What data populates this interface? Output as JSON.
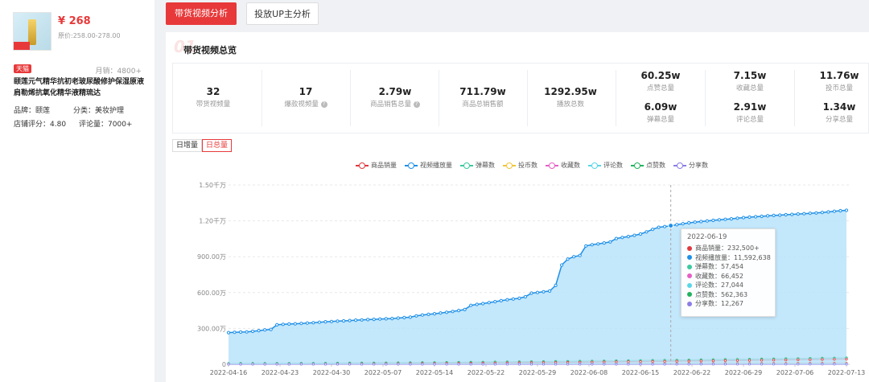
{
  "product": {
    "price": "¥ 268",
    "orig_price": "原价:258.00-278.00",
    "shop_badge": "天猫",
    "monthly_sales": "月销：4800+",
    "title": "颐莲元气精华抗初老玻尿酸修护保湿原液肩勒烯抗氧化精华液精琉达",
    "brand_label": "品牌：",
    "brand": "颐莲",
    "category_label": "分类：",
    "category": "美妆护理",
    "shop_score_label": "店铺评分：",
    "shop_score": "4.80",
    "review_label": "评论量：",
    "reviews": "7000+"
  },
  "tabs": [
    {
      "label": "带货视频分析"
    },
    {
      "label": "投放UP主分析"
    }
  ],
  "watermark": "01",
  "section_title": "带货视频总览",
  "stats": [
    {
      "value": "32",
      "label": "带货视频量"
    },
    {
      "value": "17",
      "label": "爆款视频量",
      "help": "?"
    },
    {
      "value": "2.79w",
      "label": "商品销售总量",
      "help": "?"
    },
    {
      "value": "711.79w",
      "label": "商品总销售额"
    },
    {
      "value": "1292.95w",
      "label": "播放总数"
    },
    {
      "value": "60.25w",
      "label": "点赞总量"
    },
    {
      "value": "6.09w",
      "label": "弹幕总量"
    },
    {
      "value": "7.15w",
      "label": "收藏总量"
    },
    {
      "value": "2.91w",
      "label": "评论总量"
    },
    {
      "value": "11.76w",
      "label": "投币总量"
    },
    {
      "value": "1.34w",
      "label": "分享总量"
    }
  ],
  "toggles": {
    "daily": "日增量",
    "total": "日总量"
  },
  "colors": {
    "sales": "#e0393e",
    "plays": "#1e90e8",
    "danmaku": "#3cc9a0",
    "coins": "#f0c53a",
    "favs": "#e65fc6",
    "comments": "#5ad6e8",
    "likes": "#22b35e",
    "shares": "#8b7ee6",
    "area": "#b9e3fa"
  },
  "chart_data": {
    "type": "line",
    "legend": [
      "商品销量",
      "视频播放量",
      "弹幕数",
      "投币数",
      "收藏数",
      "评论数",
      "点赞数",
      "分享数"
    ],
    "y_ticks": [
      "0",
      "300.00万",
      "600.00万",
      "900.00万",
      "1.20千万",
      "1.50千万"
    ],
    "ylim": [
      0,
      15000000
    ],
    "x_ticks": [
      "2022-04-16",
      "2022-04-23",
      "2022-04-30",
      "2022-05-07",
      "2022-05-14",
      "2022-05-22",
      "2022-05-29",
      "2022-06-08",
      "2022-06-15",
      "2022-06-22",
      "2022-06-29",
      "2022-07-06",
      "2022-07-13"
    ],
    "series": [
      {
        "name": "视频播放量",
        "key": "plays",
        "values": [
          2650000,
          2680000,
          2700000,
          2710000,
          2760000,
          2820000,
          2880000,
          2920000,
          3300000,
          3340000,
          3370000,
          3390000,
          3420000,
          3450000,
          3480000,
          3520000,
          3560000,
          3580000,
          3610000,
          3630000,
          3660000,
          3690000,
          3710000,
          3740000,
          3760000,
          3790000,
          3810000,
          3830000,
          3870000,
          3910000,
          3940000,
          4050000,
          4120000,
          4180000,
          4230000,
          4290000,
          4350000,
          4420000,
          4500000,
          4580000,
          4930000,
          5010000,
          5080000,
          5160000,
          5240000,
          5320000,
          5400000,
          5460000,
          5520000,
          5650000,
          5950000,
          6010000,
          6070000,
          6130000,
          6600000,
          8300000,
          8800000,
          9000000,
          9100000,
          9900000,
          10000000,
          10070000,
          10150000,
          10240000,
          10520000,
          10610000,
          10690000,
          10790000,
          10900000,
          11080000,
          11290000,
          11460000,
          11520000,
          11592638,
          11680000,
          11760000,
          11830000,
          11890000,
          11940000,
          11990000,
          12040000,
          12090000,
          12130000,
          12170000,
          12220000,
          12270000,
          12310000,
          12340000,
          12380000,
          12420000,
          12450000,
          12480000,
          12510000,
          12540000,
          12570000,
          12600000,
          12630000,
          12660000,
          12700000,
          12750000,
          12800000,
          12850000,
          12880000
        ]
      },
      {
        "name": "点赞数",
        "key": "likes",
        "values": [
          70000,
          540000
        ]
      },
      {
        "name": "弹幕数",
        "key": "danmaku",
        "values": [
          40000,
          520000
        ]
      },
      {
        "name": "商品销量",
        "key": "sales",
        "values": [
          10000,
          430000
        ]
      },
      {
        "name": "投币数",
        "key": "coins",
        "values": [
          20000,
          110000
        ]
      },
      {
        "name": "收藏数",
        "key": "favs",
        "values": [
          15000,
          70000
        ]
      },
      {
        "name": "评论数",
        "key": "comments",
        "values": [
          12000,
          29000
        ]
      },
      {
        "name": "分享数",
        "key": "shares",
        "values": [
          5000,
          13000
        ]
      }
    ],
    "tooltip": {
      "date": "2022-06-19",
      "rows": [
        {
          "key": "sales",
          "text": "商品销量：232,500+"
        },
        {
          "key": "plays",
          "text": "视频播放量：11,592,638"
        },
        {
          "key": "danmaku",
          "text": "弹幕数：57,454"
        },
        {
          "key": "favs",
          "text": "收藏数：66,452"
        },
        {
          "key": "comments",
          "text": "评论数：27,044"
        },
        {
          "key": "likes",
          "text": "点赞数：562,363"
        },
        {
          "key": "shares",
          "text": "分享数：12,267"
        }
      ]
    }
  }
}
